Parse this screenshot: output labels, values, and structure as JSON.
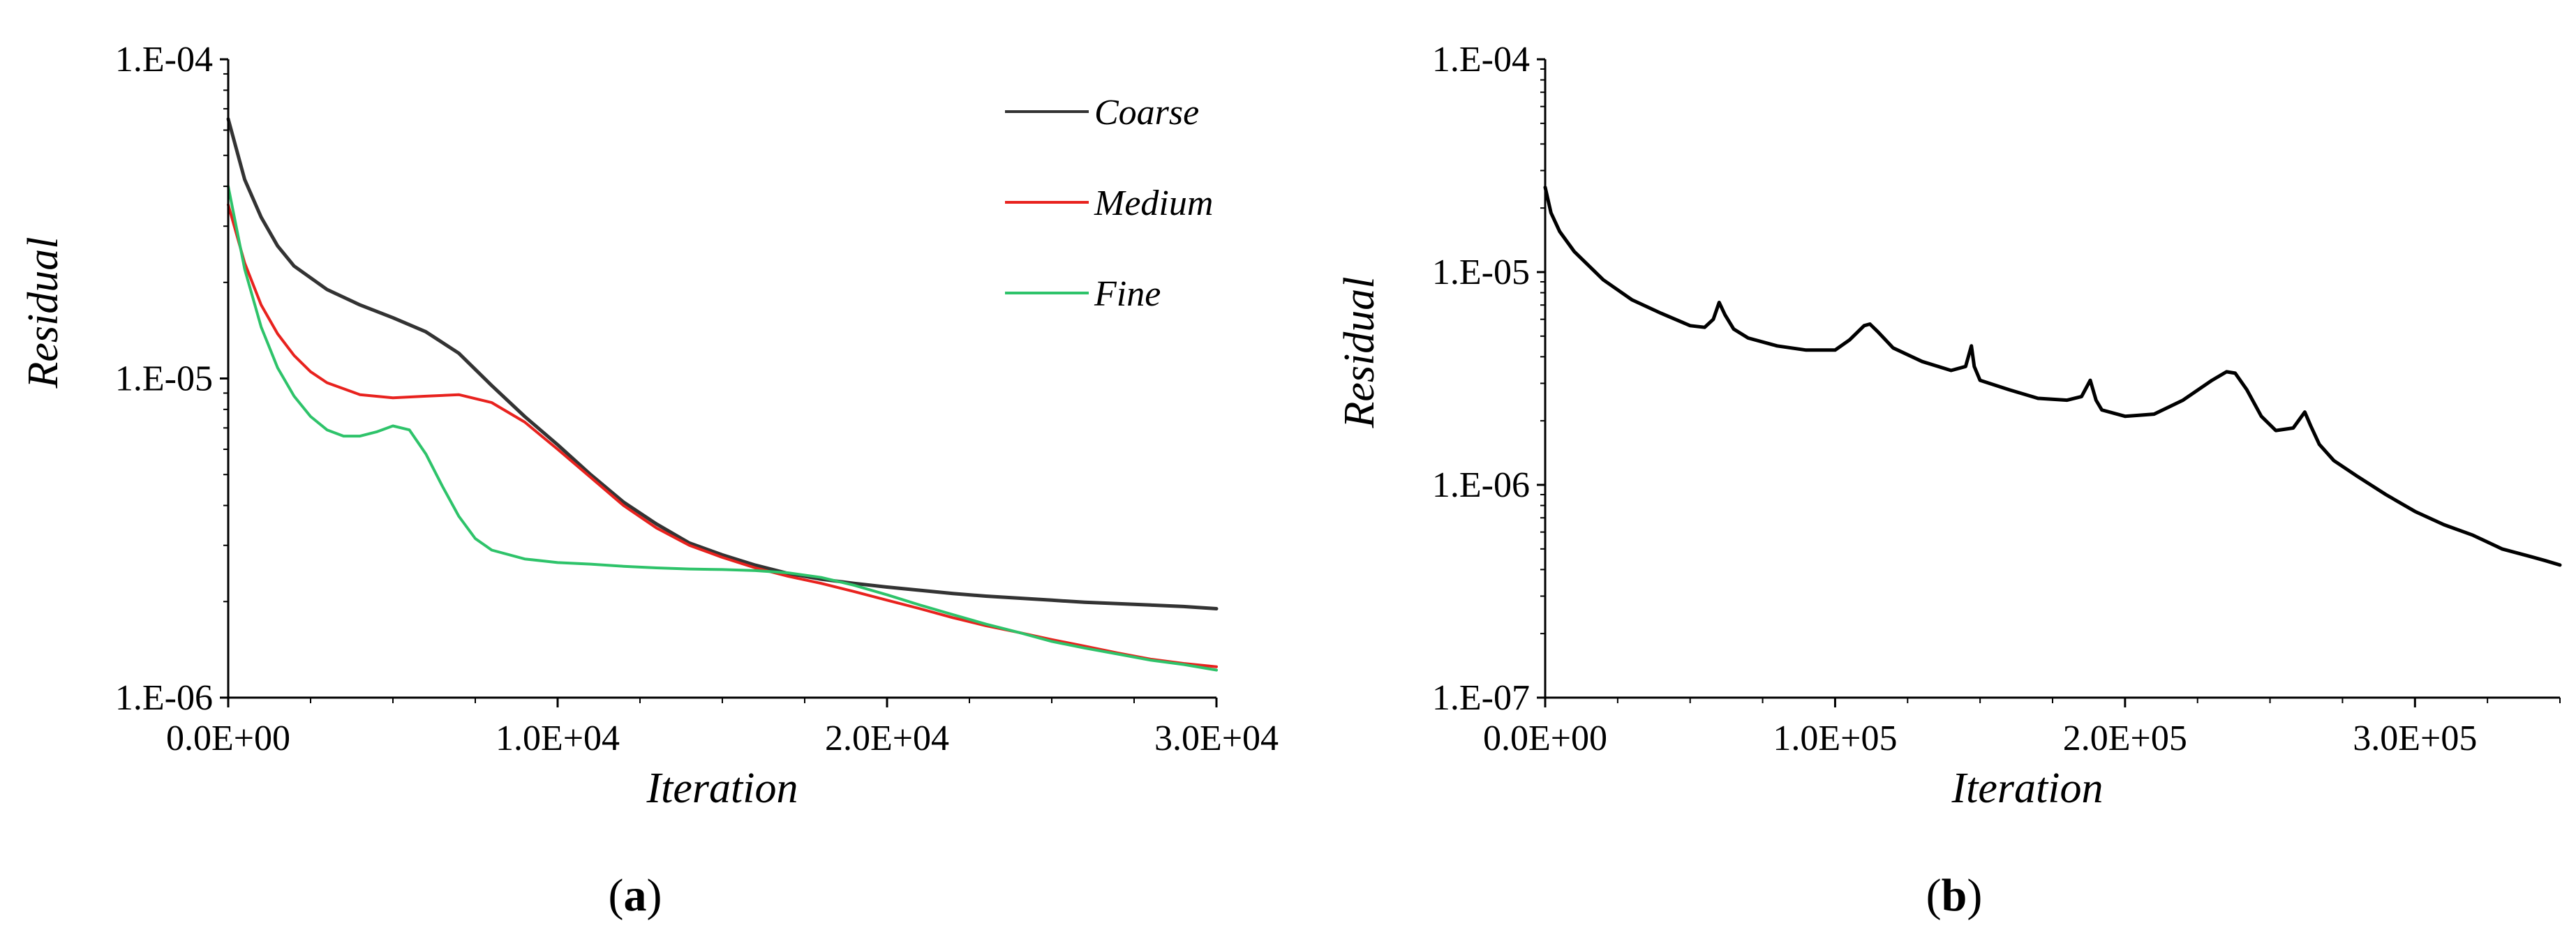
{
  "chart_data": [
    {
      "type": "line",
      "panel_label": "a",
      "title": "",
      "xlabel": "Iteration",
      "ylabel": "Residual",
      "yscale": "log",
      "xlim": [
        0,
        30000
      ],
      "ylim": [
        1e-06,
        0.0001
      ],
      "x_ticks": [
        0,
        10000,
        20000,
        30000
      ],
      "x_tick_labels": [
        "0.0E+00",
        "1.0E+04",
        "2.0E+04",
        "3.0E+04"
      ],
      "y_ticks": [
        1e-06,
        1e-05,
        0.0001
      ],
      "y_tick_labels": [
        "1.E-06",
        "1.E-05",
        "1.E-04"
      ],
      "legend_position": "top-right",
      "grid": false,
      "series": [
        {
          "name": "Coarse",
          "color": "#333333",
          "x": [
            0,
            500,
            1000,
            1500,
            2000,
            3000,
            4000,
            5000,
            6000,
            7000,
            8000,
            9000,
            10000,
            11000,
            12000,
            13000,
            14000,
            15000,
            16000,
            17000,
            18000,
            19000,
            20000,
            21000,
            22000,
            23000,
            24000,
            25000,
            26000,
            27000,
            28000,
            29000,
            30000
          ],
          "values": [
            6.5e-05,
            4.2e-05,
            3.2e-05,
            2.6e-05,
            2.25e-05,
            1.9e-05,
            1.7e-05,
            1.55e-05,
            1.4e-05,
            1.2e-05,
            9.5e-06,
            7.6e-06,
            6.2e-06,
            5e-06,
            4.1e-06,
            3.5e-06,
            3.05e-06,
            2.8e-06,
            2.6e-06,
            2.45e-06,
            2.35e-06,
            2.28e-06,
            2.22e-06,
            2.17e-06,
            2.12e-06,
            2.08e-06,
            2.05e-06,
            2.02e-06,
            1.99e-06,
            1.97e-06,
            1.95e-06,
            1.93e-06,
            1.9e-06
          ]
        },
        {
          "name": "Medium",
          "color": "#e8221e",
          "x": [
            0,
            500,
            1000,
            1500,
            2000,
            2500,
            3000,
            4000,
            5000,
            6000,
            7000,
            8000,
            9000,
            10000,
            11000,
            12000,
            13000,
            14000,
            15000,
            16000,
            17000,
            18000,
            19000,
            20000,
            21000,
            22000,
            23000,
            24000,
            25000,
            26000,
            27000,
            28000,
            29000,
            30000
          ],
          "values": [
            3.5e-05,
            2.3e-05,
            1.7e-05,
            1.38e-05,
            1.18e-05,
            1.05e-05,
            9.7e-06,
            8.9e-06,
            8.7e-06,
            8.8e-06,
            8.9e-06,
            8.4e-06,
            7.3e-06,
            6e-06,
            4.9e-06,
            4e-06,
            3.4e-06,
            3e-06,
            2.75e-06,
            2.55e-06,
            2.4e-06,
            2.28e-06,
            2.15e-06,
            2.02e-06,
            1.9e-06,
            1.78e-06,
            1.68e-06,
            1.6e-06,
            1.52e-06,
            1.45e-06,
            1.38e-06,
            1.32e-06,
            1.28e-06,
            1.25e-06
          ]
        },
        {
          "name": "Fine",
          "color": "#2ec36a",
          "x": [
            0,
            500,
            1000,
            1500,
            2000,
            2500,
            3000,
            3500,
            4000,
            4500,
            5000,
            5500,
            6000,
            6500,
            7000,
            7500,
            8000,
            9000,
            10000,
            11000,
            12000,
            13000,
            14000,
            15000,
            16000,
            17000,
            18000,
            19000,
            20000,
            21000,
            22000,
            23000,
            24000,
            25000,
            26000,
            27000,
            28000,
            29000,
            30000
          ],
          "values": [
            4e-05,
            2.2e-05,
            1.45e-05,
            1.08e-05,
            8.8e-06,
            7.6e-06,
            6.9e-06,
            6.6e-06,
            6.6e-06,
            6.8e-06,
            7.1e-06,
            6.9e-06,
            5.8e-06,
            4.6e-06,
            3.7e-06,
            3.15e-06,
            2.9e-06,
            2.72e-06,
            2.65e-06,
            2.62e-06,
            2.58e-06,
            2.55e-06,
            2.53e-06,
            2.52e-06,
            2.5e-06,
            2.46e-06,
            2.38e-06,
            2.25e-06,
            2.1e-06,
            1.95e-06,
            1.82e-06,
            1.7e-06,
            1.6e-06,
            1.5e-06,
            1.43e-06,
            1.37e-06,
            1.31e-06,
            1.27e-06,
            1.22e-06
          ]
        }
      ]
    },
    {
      "type": "line",
      "panel_label": "b",
      "title": "",
      "xlabel": "Iteration",
      "ylabel": "Residual",
      "yscale": "log",
      "xlim": [
        0,
        350000
      ],
      "ylim": [
        1e-07,
        0.0001
      ],
      "x_ticks": [
        0,
        100000,
        200000,
        300000
      ],
      "x_tick_labels": [
        "0.0E+00",
        "1.0E+05",
        "2.0E+05",
        "3.0E+05"
      ],
      "y_ticks": [
        1e-07,
        1e-06,
        1e-05,
        0.0001
      ],
      "y_tick_labels": [
        "1.E-07",
        "1.E-06",
        "1.E-05",
        "1.E-04"
      ],
      "legend_position": "none",
      "grid": false,
      "series": [
        {
          "name": "Residual",
          "color": "#000000",
          "x": [
            0,
            2000,
            5000,
            10000,
            20000,
            30000,
            40000,
            50000,
            55000,
            58000,
            60000,
            62000,
            65000,
            70000,
            80000,
            90000,
            100000,
            105000,
            110000,
            112000,
            115000,
            120000,
            130000,
            140000,
            145000,
            147000,
            148000,
            150000,
            160000,
            170000,
            180000,
            185000,
            188000,
            190000,
            192000,
            200000,
            210000,
            220000,
            230000,
            235000,
            238000,
            242000,
            247000,
            252000,
            258000,
            262000,
            264000,
            267000,
            272000,
            280000,
            290000,
            300000,
            310000,
            320000,
            330000,
            340000,
            345000,
            350000
          ],
          "values": [
            2.5e-05,
            1.9e-05,
            1.55e-05,
            1.25e-05,
            9.2e-06,
            7.4e-06,
            6.4e-06,
            5.6e-06,
            5.5e-06,
            6e-06,
            7.2e-06,
            6.3e-06,
            5.4e-06,
            4.9e-06,
            4.5e-06,
            4.3e-06,
            4.3e-06,
            4.8e-06,
            5.6e-06,
            5.7e-06,
            5.2e-06,
            4.4e-06,
            3.8e-06,
            3.45e-06,
            3.6e-06,
            4.5e-06,
            3.6e-06,
            3.1e-06,
            2.8e-06,
            2.55e-06,
            2.5e-06,
            2.6e-06,
            3.1e-06,
            2.5e-06,
            2.25e-06,
            2.1e-06,
            2.15e-06,
            2.5e-06,
            3.1e-06,
            3.4e-06,
            3.35e-06,
            2.8e-06,
            2.1e-06,
            1.8e-06,
            1.85e-06,
            2.2e-06,
            1.9e-06,
            1.55e-06,
            1.3e-06,
            1.1e-06,
            9e-07,
            7.5e-07,
            6.5e-07,
            5.8e-07,
            5e-07,
            4.6e-07,
            4.4e-07,
            4.2e-07
          ]
        }
      ]
    }
  ]
}
